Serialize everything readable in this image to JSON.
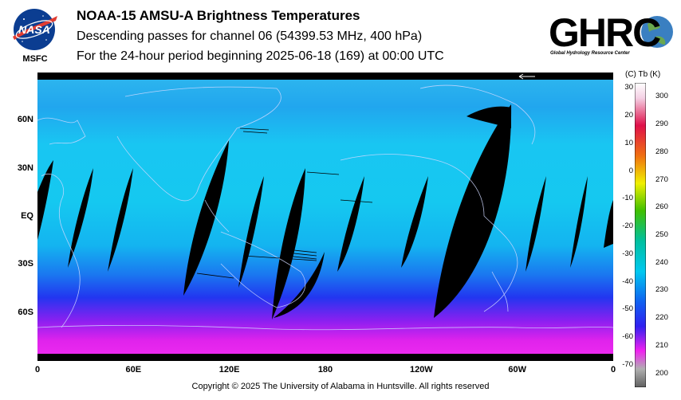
{
  "header": {
    "title": "NOAA-15 AMSU-A Brightness Temperatures",
    "subtitle_1": "Descending passes for channel 06 (54399.53 MHz, 400 hPa)",
    "subtitle_2": "For the 24-hour period beginning 2025-06-18 (169) at 00:00 UTC"
  },
  "logos": {
    "left_text": "NASA",
    "left_caption": "MSFC",
    "right_text": "GHRC",
    "right_caption": "Global Hydrology Resource Center"
  },
  "map": {
    "lat_labels": [
      "60N",
      "30N",
      "EQ",
      "30S",
      "60S"
    ],
    "lat_values": [
      60,
      30,
      0,
      -30,
      -60
    ],
    "lon_labels": [
      "0",
      "60E",
      "120E",
      "180",
      "120W",
      "60W",
      "0"
    ],
    "lon_values": [
      0,
      60,
      120,
      180,
      240,
      300,
      360
    ],
    "swath_gap_fill": "#000000"
  },
  "colorbar": {
    "header": "(C)  Tb  (K)",
    "celsius_labels": [
      "30",
      "20",
      "10",
      "0",
      "-10",
      "-20",
      "-30",
      "-40",
      "-50",
      "-60",
      "-70"
    ],
    "kelvin_labels": [
      "300",
      "290",
      "280",
      "270",
      "260",
      "250",
      "240",
      "230",
      "220",
      "210",
      "200"
    ],
    "kelvin_range": [
      195,
      305
    ]
  },
  "footer": {
    "copyright": "Copyright © 2025 The University of Alabama in Huntsville.  All rights reserved"
  }
}
